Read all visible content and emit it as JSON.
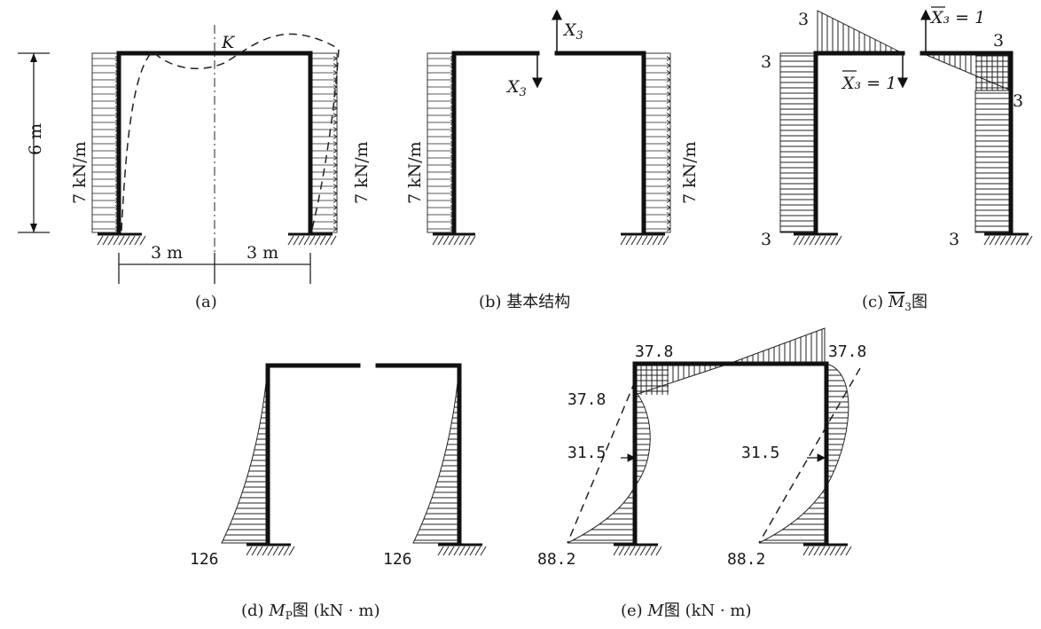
{
  "panel_a": {
    "height_label": "6 m",
    "load_left": "7 kN/m",
    "load_right": "7 kN/m",
    "point_k": "K",
    "span_left": "3 m",
    "span_right": "3 m",
    "caption": "(a)"
  },
  "panel_b": {
    "x3_up": "X",
    "x3_down": "X",
    "x3_sub": "3",
    "load_left": "7 kN/m",
    "load_right": "7 kN/m",
    "caption": "(b) 基本结构"
  },
  "panel_c": {
    "unit_force_left": "X₃ = 1",
    "unit_force_right": "X₃ = 1",
    "values": [
      "3",
      "3",
      "3",
      "3",
      "3",
      "3"
    ],
    "caption_prefix": "(c) ",
    "caption_m": "M",
    "caption_sub": "3",
    "caption_suffix": "图"
  },
  "panel_d": {
    "value_left": "126",
    "value_right": "126",
    "caption_prefix": "(d) ",
    "caption_m": "M",
    "caption_sub": "P",
    "caption_suffix": "图 (kN · m)"
  },
  "panel_e": {
    "beam_left": "37.8",
    "beam_right": "37.8",
    "col_top": "37.8",
    "mid_left": "31.5",
    "mid_right": "31.5",
    "base_left": "88.2",
    "base_right": "88.2",
    "caption_prefix": "(e) ",
    "caption_m": "M",
    "caption_suffix": "图 (kN · m)"
  }
}
